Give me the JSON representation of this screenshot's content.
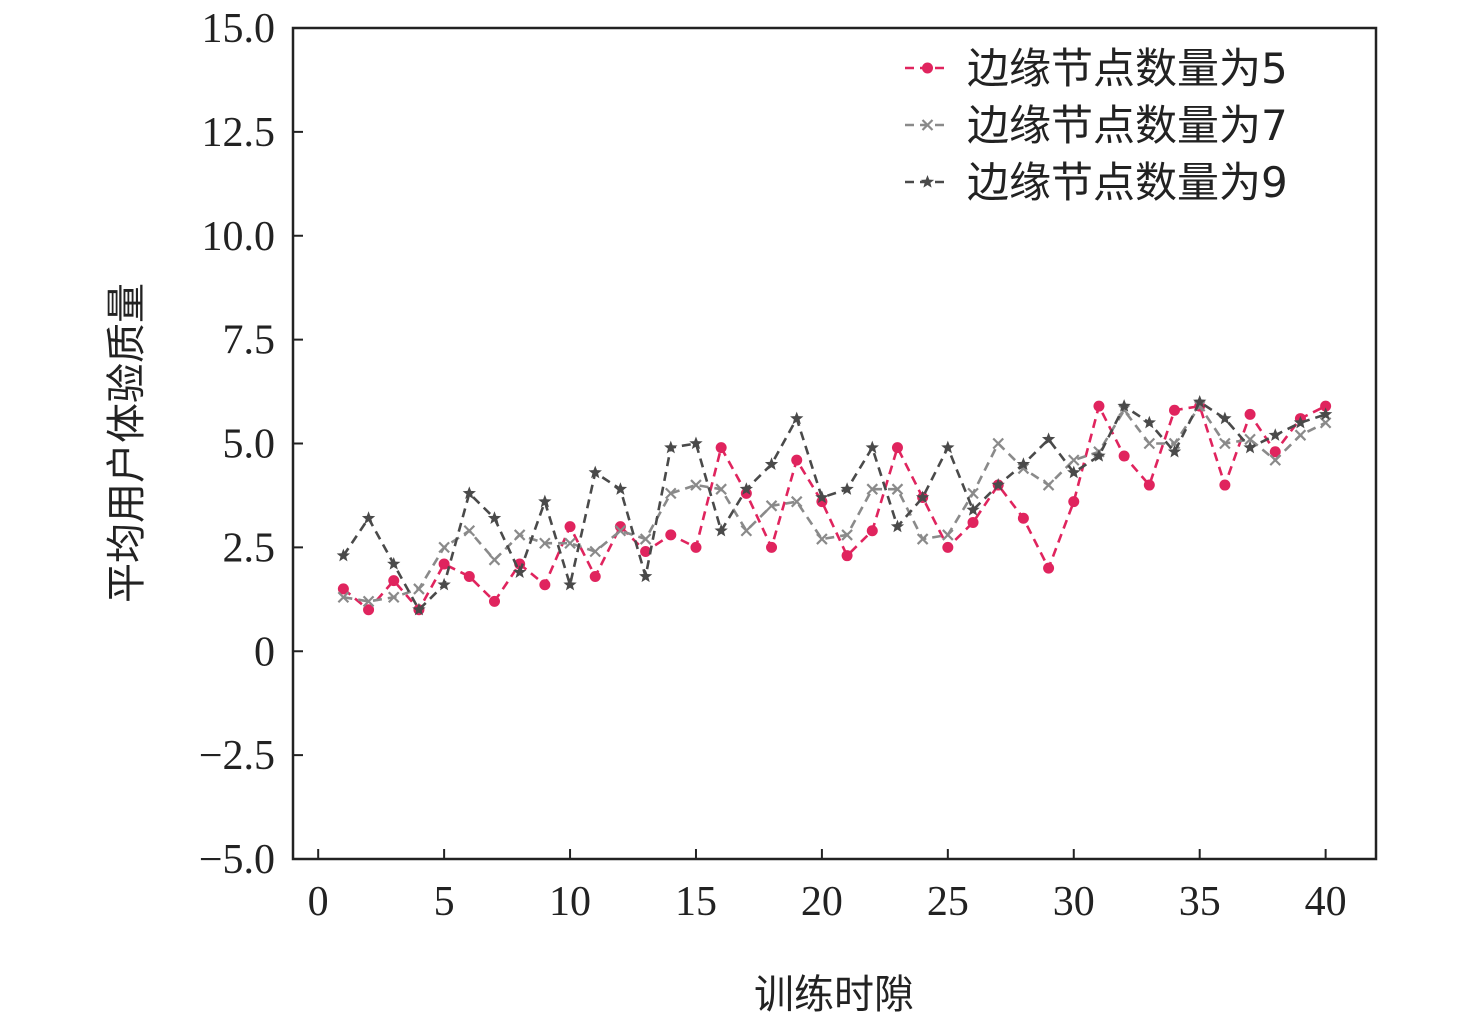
{
  "chart_data": {
    "type": "line",
    "xlabel": "训练时隙",
    "ylabel": "平均用户体验质量",
    "xlim": [
      -1,
      42
    ],
    "ylim": [
      -5.0,
      15.0
    ],
    "xticks": [
      0,
      5,
      10,
      15,
      20,
      25,
      30,
      35,
      40
    ],
    "xtick_labels": [
      "0",
      "5",
      "10",
      "15",
      "20",
      "25",
      "30",
      "35",
      "40"
    ],
    "yticks": [
      -5.0,
      -2.5,
      0,
      2.5,
      5.0,
      7.5,
      10.0,
      12.5,
      15.0
    ],
    "ytick_labels": [
      "−5.0",
      "−2.5",
      "0",
      "2.5",
      "5.0",
      "7.5",
      "10.0",
      "12.5",
      "15.0"
    ],
    "grid": false,
    "legend_position": "top-right",
    "x": [
      1,
      2,
      3,
      4,
      5,
      6,
      7,
      8,
      9,
      10,
      11,
      12,
      13,
      14,
      15,
      16,
      17,
      18,
      19,
      20,
      21,
      22,
      23,
      24,
      25,
      26,
      27,
      28,
      29,
      30,
      31,
      32,
      33,
      34,
      35,
      36,
      37,
      38,
      39,
      40
    ],
    "series": [
      {
        "name": "边缘节点数量为5",
        "color": "#e0245e",
        "marker": "circle",
        "values": [
          1.5,
          1.0,
          1.7,
          1.0,
          2.1,
          1.8,
          1.2,
          2.1,
          1.6,
          3.0,
          1.8,
          3.0,
          2.4,
          2.8,
          2.5,
          4.9,
          3.8,
          2.5,
          4.6,
          3.6,
          2.3,
          2.9,
          4.9,
          3.7,
          2.5,
          3.1,
          4.0,
          3.2,
          2.0,
          3.6,
          5.9,
          4.7,
          4.0,
          5.8,
          5.9,
          4.0,
          5.7,
          4.8,
          5.6,
          5.9
        ]
      },
      {
        "name": "边缘节点数量为7",
        "color": "#8a8a8a",
        "marker": "x",
        "values": [
          1.3,
          1.2,
          1.3,
          1.5,
          2.5,
          2.9,
          2.2,
          2.8,
          2.6,
          2.6,
          2.4,
          2.9,
          2.7,
          3.8,
          4.0,
          3.9,
          2.9,
          3.5,
          3.6,
          2.7,
          2.8,
          3.9,
          3.9,
          2.7,
          2.8,
          3.8,
          5.0,
          4.4,
          4.0,
          4.6,
          4.8,
          5.8,
          5.0,
          5.0,
          5.9,
          5.0,
          5.1,
          4.6,
          5.2,
          5.5
        ]
      },
      {
        "name": "边缘节点数量为9",
        "color": "#4a4a4a",
        "marker": "star",
        "values": [
          2.3,
          3.2,
          2.1,
          1.0,
          1.6,
          3.8,
          3.2,
          1.9,
          3.6,
          1.6,
          4.3,
          3.9,
          1.8,
          4.9,
          5.0,
          2.9,
          3.9,
          4.5,
          5.6,
          3.7,
          3.9,
          4.9,
          3.0,
          3.7,
          4.9,
          3.4,
          4.0,
          4.5,
          5.1,
          4.3,
          4.7,
          5.9,
          5.5,
          4.8,
          6.0,
          5.6,
          4.9,
          5.2,
          5.5,
          5.7
        ]
      }
    ]
  }
}
